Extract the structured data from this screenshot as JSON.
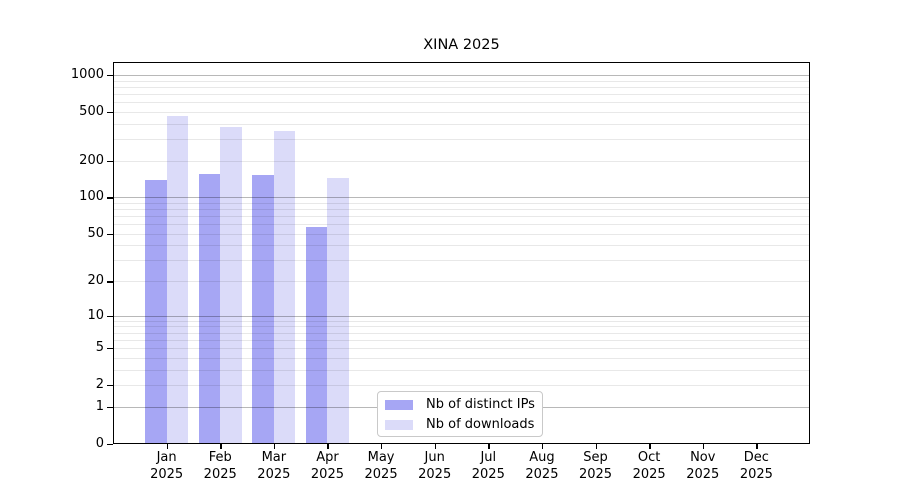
{
  "chart_data": {
    "type": "bar",
    "title": "XINA 2025",
    "year": "2025",
    "months": [
      "Jan",
      "Feb",
      "Mar",
      "Apr",
      "May",
      "Jun",
      "Jul",
      "Aug",
      "Sep",
      "Oct",
      "Nov",
      "Dec"
    ],
    "categories": [
      "Jan 2025",
      "Feb 2025",
      "Mar 2025",
      "Apr 2025",
      "May 2025",
      "Jun 2025",
      "Jul 2025",
      "Aug 2025",
      "Sep 2025",
      "Oct 2025",
      "Nov 2025",
      "Dec 2025"
    ],
    "series": [
      {
        "name": "Nb of distinct IPs",
        "color": "#a6a6f4",
        "values": [
          140,
          155,
          153,
          57,
          0,
          0,
          0,
          0,
          0,
          0,
          0,
          0
        ]
      },
      {
        "name": "Nb of downloads",
        "color": "#dbdbf9",
        "values": [
          460,
          380,
          350,
          145,
          0,
          0,
          0,
          0,
          0,
          0,
          0,
          0
        ]
      }
    ],
    "xlabel": "",
    "ylabel": "",
    "yscale": "log1p",
    "ylim": [
      0,
      1277
    ],
    "ytick_values": [
      1000,
      500,
      200,
      100,
      50,
      20,
      10,
      5,
      2,
      1,
      0
    ],
    "major_grid_values": [
      1,
      10,
      100,
      1000
    ],
    "minor_grid_values": [
      2,
      3,
      4,
      5,
      6,
      7,
      8,
      9,
      20,
      30,
      40,
      50,
      60,
      70,
      80,
      90,
      200,
      300,
      400,
      500,
      600,
      700,
      800,
      900
    ],
    "grid": true,
    "legend_position": "bottom-center"
  },
  "colors": {
    "background": "#ffffff",
    "axis": "#000000",
    "grid_major": "#b8b8b8",
    "grid_minor": "#e8e8e8",
    "bar_distinct_ips": "#a6a6f4",
    "bar_downloads": "#dbdbf9"
  }
}
